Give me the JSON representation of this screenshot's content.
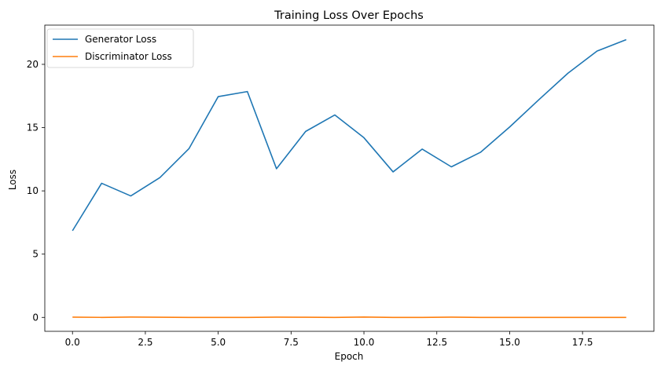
{
  "chart_data": {
    "type": "line",
    "title": "Training Loss Over Epochs",
    "xlabel": "Epoch",
    "ylabel": "Loss",
    "xlim": [
      -0.95,
      19.95
    ],
    "ylim": [
      -1.1,
      23.1
    ],
    "xticks": [
      0.0,
      2.5,
      5.0,
      7.5,
      10.0,
      12.5,
      15.0,
      17.5
    ],
    "xtick_labels": [
      "0.0",
      "2.5",
      "5.0",
      "7.5",
      "10.0",
      "12.5",
      "15.0",
      "17.5"
    ],
    "yticks": [
      0,
      5,
      10,
      15,
      20
    ],
    "ytick_labels": [
      "0",
      "5",
      "10",
      "15",
      "20"
    ],
    "grid": false,
    "legend_position": "top-left",
    "x": [
      0,
      1,
      2,
      3,
      4,
      5,
      6,
      7,
      8,
      9,
      10,
      11,
      12,
      13,
      14,
      15,
      16,
      17,
      18,
      19
    ],
    "series": [
      {
        "name": "Generator Loss",
        "color": "#1f77b4",
        "values": [
          6.85,
          10.6,
          9.6,
          11.05,
          13.35,
          17.45,
          17.85,
          11.75,
          14.7,
          16.0,
          14.2,
          11.5,
          13.3,
          11.9,
          13.05,
          15.05,
          17.2,
          19.3,
          21.05,
          21.95
        ]
      },
      {
        "name": "Discriminator Loss",
        "color": "#ff7f0e",
        "values": [
          0.02,
          0.0,
          0.03,
          0.01,
          0.0,
          0.0,
          0.0,
          0.02,
          0.01,
          0.0,
          0.03,
          0.0,
          0.0,
          0.02,
          0.0,
          0.0,
          0.0,
          0.0,
          0.0,
          0.0
        ]
      }
    ]
  }
}
